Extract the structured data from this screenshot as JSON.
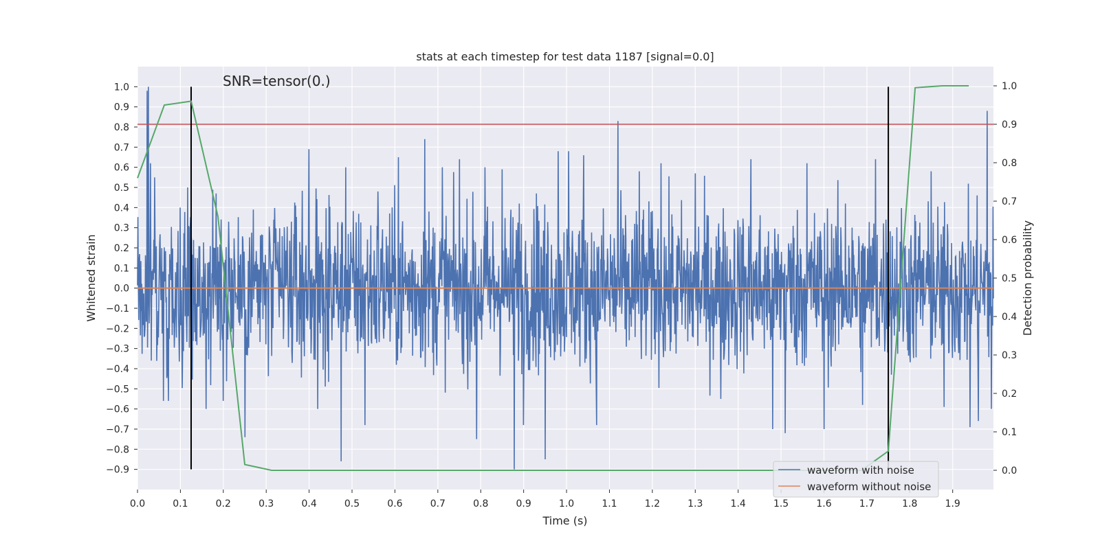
{
  "chart_data": {
    "type": "line",
    "title": "stats at each timestep for test data 1187 [signal=0.0]",
    "xlabel": "Time (s)",
    "ylabel": "Whitened strain",
    "y2label": "Detection probability",
    "annotation": "SNR=tensor(0.)",
    "xlim": [
      0.0,
      1.995
    ],
    "ylim": [
      -1.0,
      1.1
    ],
    "y2lim": [
      -0.05,
      1.05
    ],
    "xticks": [
      "0.0",
      "0.1",
      "0.2",
      "0.3",
      "0.4",
      "0.5",
      "0.6",
      "0.7",
      "0.8",
      "0.9",
      "1.0",
      "1.1",
      "1.2",
      "1.3",
      "1.4",
      "1.5",
      "1.6",
      "1.7",
      "1.8",
      "1.9"
    ],
    "yticks": [
      "1.0",
      "0.9",
      "0.8",
      "0.7",
      "0.6",
      "0.5",
      "0.4",
      "0.3",
      "0.2",
      "0.1",
      "0.0",
      "−0.1",
      "−0.2",
      "−0.3",
      "−0.4",
      "−0.5",
      "−0.6",
      "−0.7",
      "−0.8",
      "−0.9"
    ],
    "y2ticks": [
      "1.0",
      "0.9",
      "0.8",
      "0.7",
      "0.6",
      "0.5",
      "0.4",
      "0.3",
      "0.2",
      "0.1",
      "0.0"
    ],
    "legend_position": "lower-right",
    "threshold": {
      "y2": 0.9,
      "color": "#c44e52"
    },
    "vlines": [
      {
        "x": 0.125,
        "ymin": -0.9,
        "ymax": 1.0
      },
      {
        "x": 1.75,
        "ymin": -0.9,
        "ymax": 1.0
      }
    ],
    "series": [
      {
        "name": "waveform with noise",
        "color": "#4c72b0",
        "axis": "left",
        "n_samples": 2048,
        "spikes": [
          [
            0.022,
            0.98
          ],
          [
            0.025,
            1.0
          ],
          [
            0.03,
            0.62
          ],
          [
            0.04,
            0.55
          ],
          [
            0.06,
            -0.56
          ],
          [
            0.072,
            -0.56
          ],
          [
            0.12,
            0.3
          ],
          [
            0.16,
            -0.6
          ],
          [
            0.2,
            -0.56
          ],
          [
            0.212,
            0.33
          ],
          [
            0.25,
            -0.74
          ],
          [
            0.27,
            0.39
          ],
          [
            0.4,
            0.69
          ],
          [
            0.42,
            -0.6
          ],
          [
            0.475,
            -0.86
          ],
          [
            0.485,
            0.6
          ],
          [
            0.53,
            -0.68
          ],
          [
            0.56,
            0.48
          ],
          [
            0.608,
            0.65
          ],
          [
            0.67,
            0.74
          ],
          [
            0.71,
            0.6
          ],
          [
            0.75,
            0.64
          ],
          [
            0.79,
            -0.75
          ],
          [
            0.81,
            0.6
          ],
          [
            0.85,
            0.59
          ],
          [
            0.878,
            -0.9
          ],
          [
            0.89,
            0.42
          ],
          [
            0.9,
            -0.68
          ],
          [
            0.93,
            0.47
          ],
          [
            0.95,
            -0.85
          ],
          [
            0.98,
            0.68
          ],
          [
            1.005,
            0.68
          ],
          [
            1.04,
            0.66
          ],
          [
            1.07,
            -0.68
          ],
          [
            1.12,
            0.83
          ],
          [
            1.17,
            0.58
          ],
          [
            1.22,
            0.62
          ],
          [
            1.3,
            0.57
          ],
          [
            1.36,
            -0.55
          ],
          [
            1.43,
            0.64
          ],
          [
            1.48,
            -0.7
          ],
          [
            1.51,
            -0.72
          ],
          [
            1.56,
            0.62
          ],
          [
            1.6,
            -0.7
          ],
          [
            1.65,
            0.42
          ],
          [
            1.69,
            -0.58
          ],
          [
            1.72,
            0.64
          ],
          [
            1.85,
            0.58
          ],
          [
            1.88,
            -0.59
          ],
          [
            1.94,
            -0.69
          ],
          [
            1.96,
            -0.66
          ],
          [
            1.98,
            0.88
          ],
          [
            1.99,
            -0.6
          ]
        ]
      },
      {
        "name": "waveform without noise",
        "color": "#dd8452",
        "axis": "left",
        "x": [
          0.0,
          1.995
        ],
        "y": [
          0.0,
          0.0
        ]
      },
      {
        "name": "detection probability",
        "color": "#55a868",
        "axis": "right",
        "x": [
          0.0,
          0.0625,
          0.125,
          0.1875,
          0.25,
          0.3125,
          0.375,
          0.4375,
          0.5,
          0.5625,
          0.625,
          0.6875,
          0.75,
          0.8125,
          0.875,
          0.9375,
          1.0,
          1.0625,
          1.125,
          1.1875,
          1.25,
          1.3125,
          1.375,
          1.4375,
          1.5,
          1.5625,
          1.625,
          1.6875,
          1.75,
          1.8125,
          1.875,
          1.9375
        ],
        "y": [
          0.76,
          0.95,
          0.96,
          0.66,
          0.015,
          0.0,
          0.0,
          0.0,
          0.0,
          0.0,
          0.0,
          0.0,
          0.0,
          0.0,
          0.0,
          0.0,
          0.0,
          0.0,
          0.0,
          0.0,
          0.0,
          0.0,
          0.0,
          0.0,
          0.0,
          0.0,
          0.0,
          0.0,
          0.05,
          0.995,
          1.0,
          1.0
        ]
      }
    ]
  }
}
